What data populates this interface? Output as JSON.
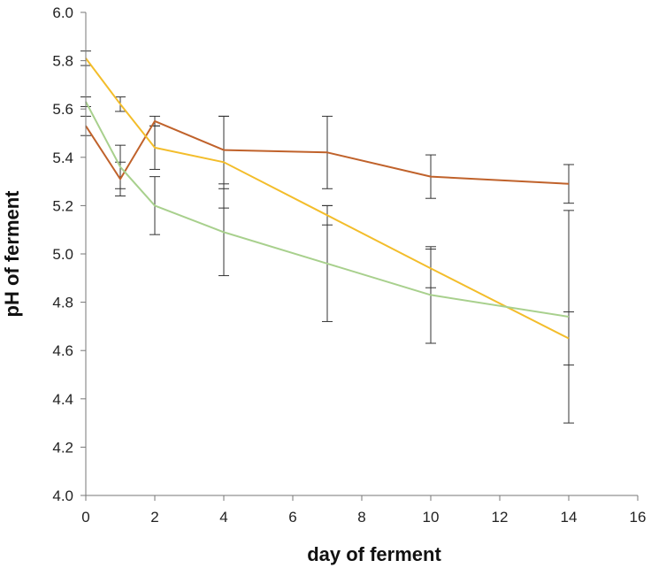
{
  "chart_data": {
    "type": "line",
    "title": "",
    "xlabel": "day of ferment",
    "ylabel": "pH of ferment",
    "xlim": [
      0,
      16
    ],
    "ylim": [
      4.0,
      6.0
    ],
    "xticks": [
      "0",
      "2",
      "4",
      "6",
      "8",
      "10",
      "12",
      "14",
      "16"
    ],
    "yticks": [
      "4.0",
      "4.2",
      "4.4",
      "4.6",
      "4.8",
      "5.0",
      "5.2",
      "5.4",
      "5.6",
      "5.8",
      "6.0"
    ],
    "grid": false,
    "legend": "none",
    "error_bars": true,
    "series": [
      {
        "color": "#c0622b",
        "x": [
          0,
          1,
          2,
          4,
          7,
          10,
          14
        ],
        "y": [
          5.53,
          5.31,
          5.55,
          5.43,
          5.42,
          5.32,
          5.29
        ],
        "err": [
          0.04,
          0.07,
          0.02,
          0.14,
          0.15,
          0.09,
          0.08
        ]
      },
      {
        "color": "#f3bd2b",
        "x": [
          0,
          1,
          2,
          4,
          7,
          10,
          14
        ],
        "y": [
          5.81,
          5.62,
          5.44,
          5.38,
          5.16,
          4.94,
          4.65
        ],
        "err": [
          0.03,
          0.03,
          0.09,
          0.19,
          0.04,
          0.08,
          0.11
        ]
      },
      {
        "color": "#a8d08d",
        "x": [
          0,
          1,
          2,
          4,
          7,
          10,
          14
        ],
        "y": [
          5.63,
          5.36,
          5.2,
          5.09,
          4.96,
          4.83,
          4.74
        ],
        "err": [
          0.02,
          0.09,
          0.12,
          0.18,
          0.24,
          0.2,
          0.44
        ]
      }
    ]
  }
}
